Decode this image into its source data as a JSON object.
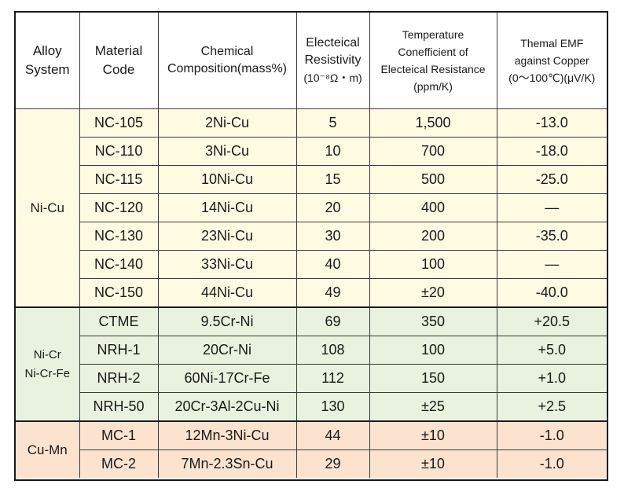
{
  "headers": {
    "alloy_system": [
      "Alloy",
      "System"
    ],
    "material_code": [
      "Material",
      "Code"
    ],
    "chemical_composition": [
      "Chemical",
      "Composition(mass%)"
    ],
    "resistivity": [
      "Electeical",
      "Resistivity",
      "(10⁻⁸Ω・m)"
    ],
    "temp_coefficient": [
      "Temperature",
      "Conefficient of",
      "Electeical Resistance",
      "(ppm/K)"
    ],
    "thermal_emf": [
      "Themal EMF",
      "against Copper",
      "(0～100℃)(μV/K)"
    ]
  },
  "groups": [
    {
      "system": [
        "Ni-Cu"
      ],
      "rows": [
        {
          "code": "NC-105",
          "composition": "2Ni-Cu",
          "resistivity": "5",
          "tcr": "1,500",
          "emf": "-13.0"
        },
        {
          "code": "NC-110",
          "composition": "3Ni-Cu",
          "resistivity": "10",
          "tcr": "700",
          "emf": "-18.0"
        },
        {
          "code": "NC-115",
          "composition": "10Ni-Cu",
          "resistivity": "15",
          "tcr": "500",
          "emf": "-25.0"
        },
        {
          "code": "NC-120",
          "composition": "14Ni-Cu",
          "resistivity": "20",
          "tcr": "400",
          "emf": "—"
        },
        {
          "code": "NC-130",
          "composition": "23Ni-Cu",
          "resistivity": "30",
          "tcr": "200",
          "emf": "-35.0"
        },
        {
          "code": "NC-140",
          "composition": "33Ni-Cu",
          "resistivity": "40",
          "tcr": "100",
          "emf": "—"
        },
        {
          "code": "NC-150",
          "composition": "44Ni-Cu",
          "resistivity": "49",
          "tcr": "±20",
          "emf": "-40.0"
        }
      ]
    },
    {
      "system": [
        "Ni-Cr",
        "Ni-Cr-Fe"
      ],
      "rows": [
        {
          "code": "CTME",
          "composition": "9.5Cr-Ni",
          "resistivity": "69",
          "tcr": "350",
          "emf": "+20.5"
        },
        {
          "code": "NRH-1",
          "composition": "20Cr-Ni",
          "resistivity": "108",
          "tcr": "100",
          "emf": "+5.0"
        },
        {
          "code": "NRH-2",
          "composition": "60Ni-17Cr-Fe",
          "resistivity": "112",
          "tcr": "150",
          "emf": "+1.0"
        },
        {
          "code": "NRH-50",
          "composition": "20Cr-3Al-2Cu-Ni",
          "resistivity": "130",
          "tcr": "±25",
          "emf": "+2.5"
        }
      ]
    },
    {
      "system": [
        "Cu-Mn"
      ],
      "rows": [
        {
          "code": "MC-1",
          "composition": "12Mn-3Ni-Cu",
          "resistivity": "44",
          "tcr": "±10",
          "emf": "-1.0"
        },
        {
          "code": "MC-2",
          "composition": "7Mn-2.3Sn-Cu",
          "resistivity": "29",
          "tcr": "±10",
          "emf": "-1.0"
        }
      ]
    }
  ],
  "colors": {
    "ni_cu_background": "#fffbe3",
    "ni_cr_background": "#e8f2df",
    "cu_mn_background": "#fbe3cf",
    "border": "#1a1a1a"
  }
}
